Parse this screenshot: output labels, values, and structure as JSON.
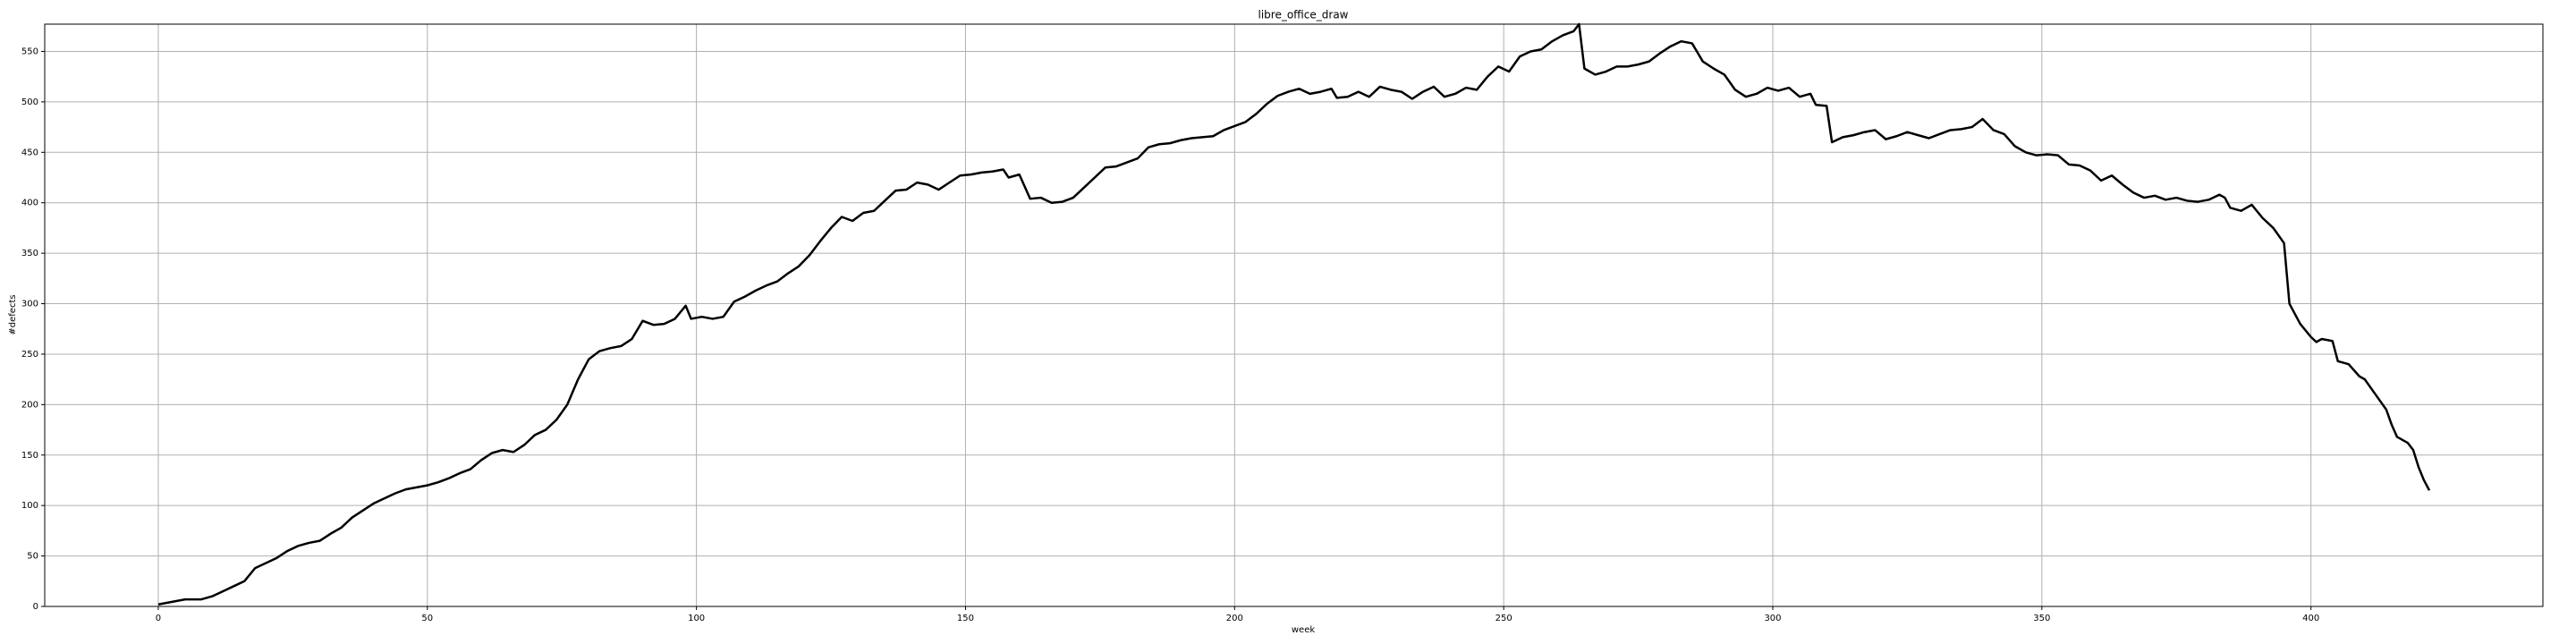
{
  "chart_data": {
    "type": "line",
    "title": "libre_office_draw",
    "xlabel": "week",
    "ylabel": "#defects",
    "x": [
      0,
      3,
      5,
      8,
      10,
      12,
      14,
      16,
      18,
      20,
      22,
      24,
      26,
      28,
      30,
      32,
      34,
      36,
      38,
      40,
      42,
      44,
      46,
      48,
      50,
      52,
      54,
      56,
      58,
      60,
      62,
      64,
      66,
      68,
      70,
      72,
      74,
      76,
      78,
      80,
      82,
      84,
      86,
      88,
      90,
      92,
      94,
      96,
      98,
      99,
      101,
      103,
      105,
      107,
      109,
      111,
      113,
      115,
      117,
      119,
      121,
      123,
      125,
      127,
      129,
      131,
      133,
      135,
      137,
      139,
      141,
      143,
      145,
      147,
      149,
      151,
      153,
      155,
      157,
      158,
      160,
      162,
      164,
      166,
      168,
      170,
      172,
      174,
      176,
      178,
      180,
      182,
      184,
      186,
      188,
      190,
      192,
      194,
      196,
      198,
      200,
      202,
      204,
      206,
      208,
      210,
      212,
      214,
      216,
      218,
      219,
      221,
      223,
      225,
      227,
      229,
      231,
      233,
      235,
      237,
      239,
      241,
      243,
      245,
      247,
      249,
      251,
      253,
      255,
      257,
      259,
      261,
      263,
      264,
      265,
      267,
      269,
      271,
      273,
      275,
      277,
      279,
      281,
      283,
      285,
      287,
      289,
      291,
      293,
      295,
      297,
      299,
      301,
      303,
      305,
      307,
      308,
      310,
      311,
      313,
      315,
      317,
      319,
      321,
      323,
      325,
      327,
      329,
      331,
      333,
      335,
      337,
      339,
      341,
      343,
      345,
      347,
      349,
      351,
      353,
      355,
      357,
      359,
      361,
      363,
      365,
      367,
      369,
      371,
      373,
      375,
      377,
      379,
      381,
      383,
      384,
      385,
      387,
      389,
      391,
      393,
      395,
      396,
      398,
      400,
      401,
      402,
      404,
      405,
      407,
      409,
      410,
      412,
      414,
      415,
      416,
      418,
      419,
      420,
      421,
      422
    ],
    "series": [
      {
        "name": "libre_office_draw",
        "color": "#000000",
        "values": [
          2,
          5,
          7,
          7,
          10,
          15,
          20,
          25,
          38,
          43,
          48,
          55,
          60,
          63,
          65,
          72,
          78,
          88,
          95,
          102,
          107,
          112,
          116,
          118,
          120,
          123,
          127,
          132,
          136,
          145,
          152,
          155,
          153,
          160,
          170,
          175,
          185,
          200,
          225,
          245,
          253,
          256,
          258,
          265,
          283,
          279,
          280,
          285,
          298,
          285,
          287,
          285,
          287,
          302,
          307,
          313,
          318,
          322,
          330,
          337,
          348,
          362,
          375,
          386,
          382,
          390,
          392,
          402,
          412,
          413,
          420,
          418,
          413,
          420,
          427,
          428,
          430,
          431,
          433,
          425,
          428,
          404,
          405,
          400,
          401,
          405,
          415,
          425,
          435,
          436,
          440,
          444,
          455,
          458,
          459,
          462,
          464,
          465,
          466,
          472,
          476,
          480,
          488,
          498,
          506,
          510,
          513,
          508,
          510,
          513,
          504,
          505,
          510,
          505,
          515,
          512,
          510,
          503,
          510,
          515,
          505,
          508,
          514,
          512,
          525,
          535,
          530,
          545,
          550,
          552,
          560,
          566,
          570,
          577,
          533,
          527,
          530,
          535,
          535,
          537,
          540,
          548,
          555,
          560,
          558,
          540,
          533,
          527,
          512,
          505,
          508,
          514,
          511,
          514,
          505,
          508,
          497,
          496,
          460,
          465,
          467,
          470,
          472,
          463,
          466,
          470,
          467,
          464,
          468,
          472,
          473,
          475,
          483,
          472,
          468,
          456,
          450,
          447,
          448,
          447,
          438,
          437,
          432,
          422,
          427,
          418,
          410,
          405,
          407,
          403,
          405,
          402,
          401,
          403,
          408,
          405,
          395,
          392,
          398,
          385,
          375,
          360,
          300,
          280,
          267,
          262,
          265,
          263,
          243,
          240,
          228,
          225,
          210,
          195,
          180,
          168,
          162,
          155,
          138,
          125,
          115
        ]
      }
    ],
    "xlim": [
      -21.1,
      443.1
    ],
    "ylim": [
      0,
      577
    ],
    "xticks": [
      0,
      50,
      100,
      150,
      200,
      250,
      300,
      350,
      400
    ],
    "yticks": [
      0,
      50,
      100,
      150,
      200,
      250,
      300,
      350,
      400,
      450,
      500,
      550
    ],
    "grid": true
  }
}
